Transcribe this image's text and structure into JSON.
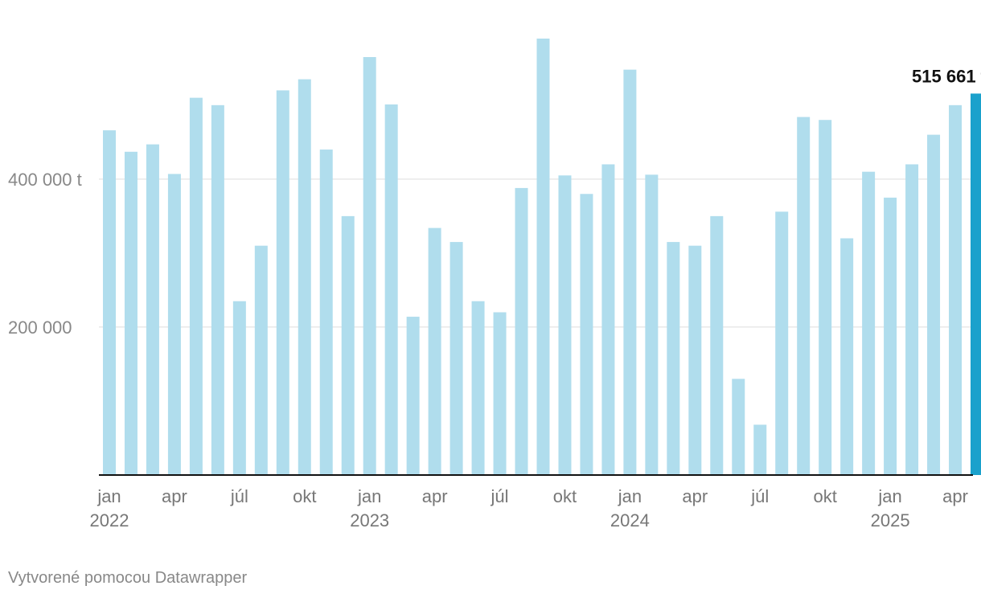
{
  "chart_data": {
    "type": "bar",
    "title": "",
    "xlabel": "",
    "ylabel": "",
    "ylim": [
      0,
      620000
    ],
    "grid": true,
    "unit_suffix": " t",
    "colors": {
      "bar": "#b0dded",
      "highlight": "#1aa1cc",
      "grid": "#dddddd",
      "axis": "#111111"
    },
    "categories": [
      "2022-01",
      "2022-02",
      "2022-03",
      "2022-04",
      "2022-05",
      "2022-06",
      "2022-07",
      "2022-08",
      "2022-09",
      "2022-10",
      "2022-11",
      "2022-12",
      "2023-01",
      "2023-02",
      "2023-03",
      "2023-04",
      "2023-05",
      "2023-06",
      "2023-07",
      "2023-08",
      "2023-09",
      "2023-10",
      "2023-11",
      "2023-12",
      "2024-01",
      "2024-02",
      "2024-03",
      "2024-04",
      "2024-05",
      "2024-06",
      "2024-07",
      "2024-08",
      "2024-09",
      "2024-10",
      "2024-11",
      "2024-12",
      "2025-01",
      "2025-02",
      "2025-03",
      "2025-04",
      "2025-05"
    ],
    "values": [
      466000,
      437000,
      447000,
      407000,
      510000,
      500000,
      235000,
      310000,
      520000,
      535000,
      440000,
      350000,
      565000,
      501000,
      214000,
      334000,
      315000,
      235000,
      220000,
      388000,
      590000,
      405000,
      380000,
      420000,
      548000,
      406000,
      315000,
      310000,
      350000,
      130000,
      68000,
      356000,
      484000,
      480000,
      320000,
      410000,
      375000,
      420000,
      460000,
      500000,
      515661
    ],
    "highlight_index": 40,
    "highlight_label": "515 661 t",
    "y_ticks": [
      {
        "value": 200000,
        "label": "200 000"
      },
      {
        "value": 400000,
        "label": "400 000 t"
      }
    ],
    "x_ticks": [
      {
        "index": 0,
        "month": "jan",
        "year": "2022"
      },
      {
        "index": 3,
        "month": "apr",
        "year": ""
      },
      {
        "index": 6,
        "month": "júl",
        "year": ""
      },
      {
        "index": 9,
        "month": "okt",
        "year": ""
      },
      {
        "index": 12,
        "month": "jan",
        "year": "2023"
      },
      {
        "index": 15,
        "month": "apr",
        "year": ""
      },
      {
        "index": 18,
        "month": "júl",
        "year": ""
      },
      {
        "index": 21,
        "month": "okt",
        "year": ""
      },
      {
        "index": 24,
        "month": "jan",
        "year": "2024"
      },
      {
        "index": 27,
        "month": "apr",
        "year": ""
      },
      {
        "index": 30,
        "month": "júl",
        "year": ""
      },
      {
        "index": 33,
        "month": "okt",
        "year": ""
      },
      {
        "index": 36,
        "month": "jan",
        "year": "2025"
      },
      {
        "index": 39,
        "month": "apr",
        "year": ""
      }
    ]
  },
  "footer": {
    "credit": "Vytvorené pomocou Datawrapper"
  }
}
